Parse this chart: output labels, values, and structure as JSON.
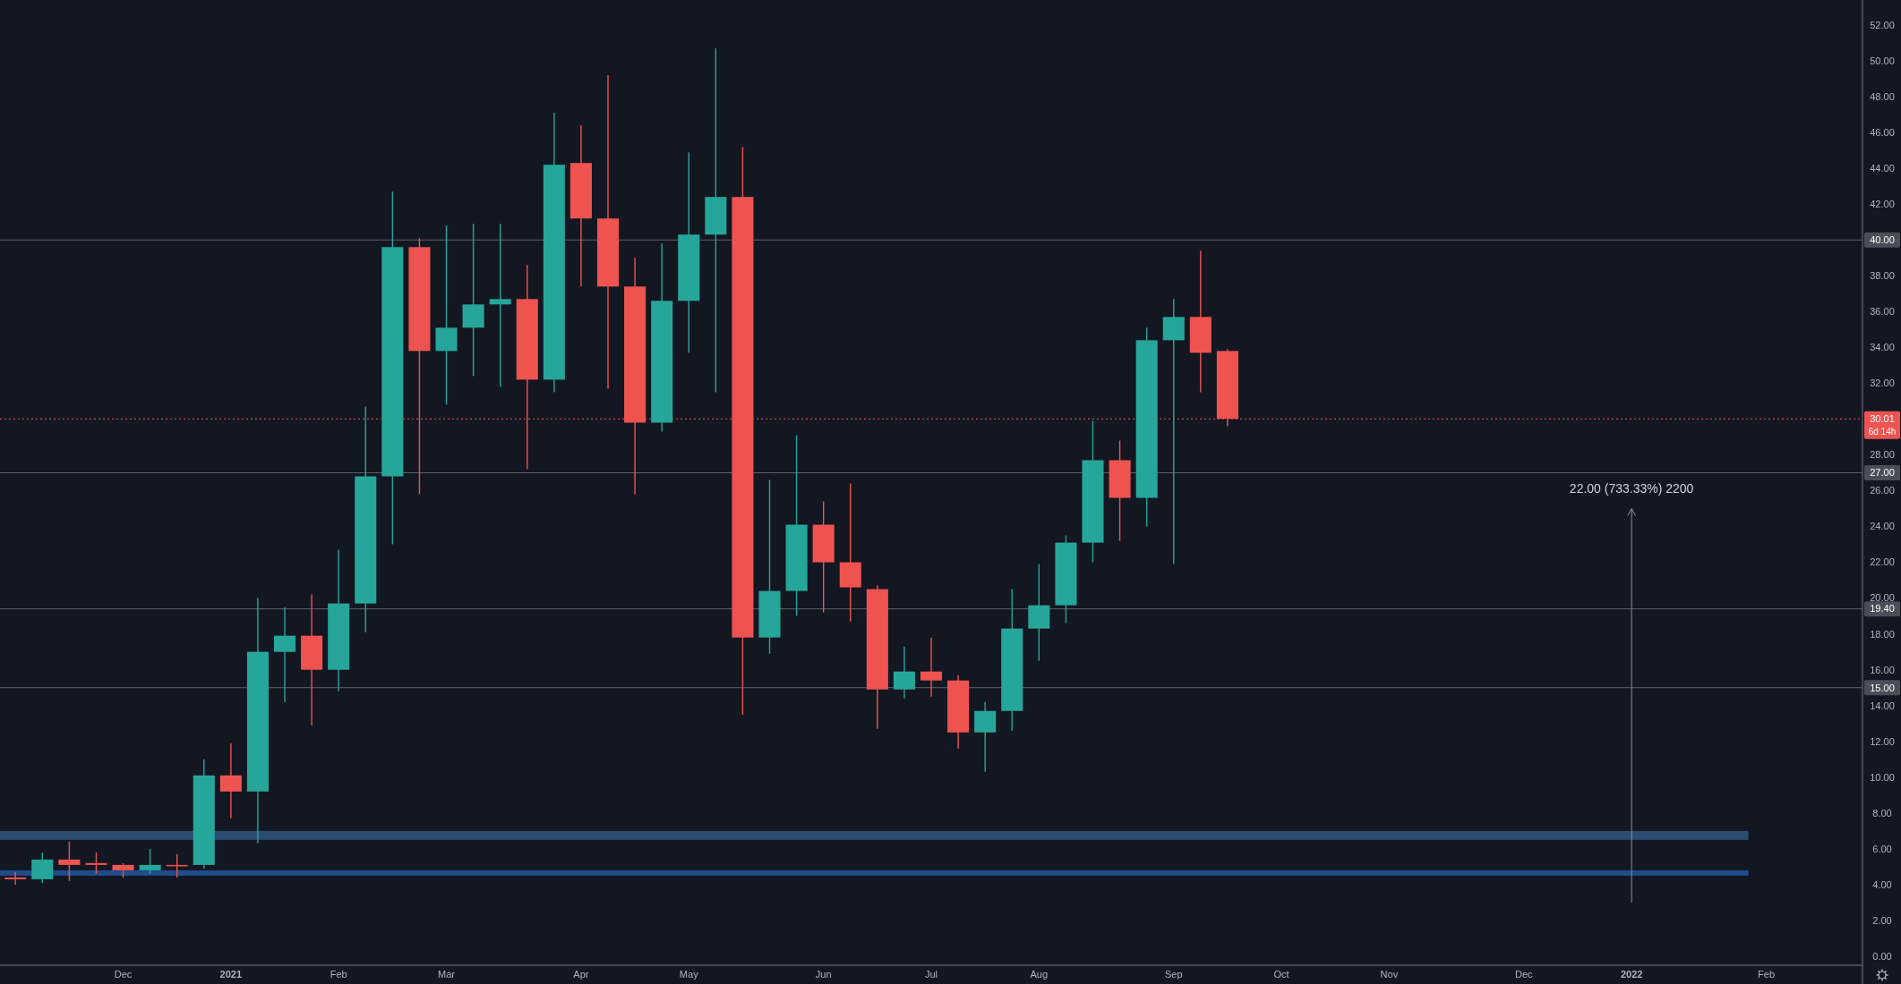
{
  "chart_data": {
    "type": "candlestick",
    "x": [
      "2020-11-09",
      "2020-11-16",
      "2020-11-23",
      "2020-11-30",
      "2020-12-07",
      "2020-12-14",
      "2020-12-21",
      "2020-12-28",
      "2021-01-04",
      "2021-01-11",
      "2021-01-18",
      "2021-01-25",
      "2021-02-01",
      "2021-02-08",
      "2021-02-15",
      "2021-02-22",
      "2021-03-01",
      "2021-03-08",
      "2021-03-15",
      "2021-03-22",
      "2021-03-29",
      "2021-04-05",
      "2021-04-12",
      "2021-04-19",
      "2021-04-26",
      "2021-05-03",
      "2021-05-10",
      "2021-05-17",
      "2021-05-24",
      "2021-05-31",
      "2021-06-07",
      "2021-06-14",
      "2021-06-21",
      "2021-06-28",
      "2021-07-05",
      "2021-07-12",
      "2021-07-19",
      "2021-07-26",
      "2021-08-02",
      "2021-08-09",
      "2021-08-16",
      "2021-08-23",
      "2021-08-30",
      "2021-09-06",
      "2021-09-13",
      "2021-09-20"
    ],
    "ohlc": [
      [
        4.4,
        4.7,
        4.0,
        4.3
      ],
      [
        4.3,
        5.8,
        4.1,
        5.4
      ],
      [
        5.4,
        6.4,
        4.2,
        5.1
      ],
      [
        5.2,
        5.8,
        4.6,
        5.1
      ],
      [
        5.1,
        5.2,
        4.4,
        4.8
      ],
      [
        4.8,
        6.0,
        4.6,
        5.1
      ],
      [
        5.1,
        5.7,
        4.4,
        5.1
      ],
      [
        5.1,
        11.0,
        4.9,
        10.1
      ],
      [
        10.1,
        11.9,
        7.7,
        9.2
      ],
      [
        9.2,
        20.0,
        6.3,
        17.0
      ],
      [
        17.0,
        19.5,
        14.2,
        17.9
      ],
      [
        17.9,
        20.2,
        12.9,
        16.0
      ],
      [
        16.0,
        22.7,
        14.8,
        19.7
      ],
      [
        19.7,
        30.7,
        18.1,
        26.8
      ],
      [
        26.8,
        42.7,
        23.0,
        39.6
      ],
      [
        39.6,
        40.1,
        25.8,
        33.8
      ],
      [
        33.8,
        40.8,
        30.8,
        35.1
      ],
      [
        35.1,
        40.9,
        32.4,
        36.4
      ],
      [
        36.4,
        40.9,
        31.8,
        36.7
      ],
      [
        36.7,
        38.6,
        27.2,
        32.2
      ],
      [
        32.2,
        47.1,
        31.5,
        44.2
      ],
      [
        44.3,
        46.4,
        37.4,
        41.2
      ],
      [
        41.2,
        49.2,
        31.7,
        37.4
      ],
      [
        37.4,
        39.0,
        25.8,
        29.8
      ],
      [
        29.8,
        39.8,
        29.3,
        36.6
      ],
      [
        36.6,
        44.9,
        33.7,
        40.3
      ],
      [
        40.3,
        50.7,
        31.5,
        42.4
      ],
      [
        42.4,
        45.2,
        13.5,
        17.8
      ],
      [
        17.8,
        26.6,
        16.9,
        20.4
      ],
      [
        20.4,
        29.1,
        19.0,
        24.1
      ],
      [
        24.1,
        25.4,
        19.2,
        22.0
      ],
      [
        22.0,
        26.4,
        18.7,
        20.6
      ],
      [
        20.5,
        20.7,
        12.7,
        14.9
      ],
      [
        14.9,
        17.3,
        14.4,
        15.9
      ],
      [
        15.9,
        17.8,
        14.5,
        15.4
      ],
      [
        15.4,
        15.7,
        11.6,
        12.5
      ],
      [
        12.5,
        14.2,
        10.3,
        13.7
      ],
      [
        13.7,
        20.5,
        12.6,
        18.3
      ],
      [
        18.3,
        21.9,
        16.5,
        19.6
      ],
      [
        19.6,
        23.5,
        18.6,
        23.1
      ],
      [
        23.1,
        29.9,
        22.0,
        27.7
      ],
      [
        27.7,
        28.8,
        23.2,
        25.6
      ],
      [
        25.6,
        35.1,
        24.0,
        34.4
      ],
      [
        34.4,
        36.7,
        21.9,
        35.7
      ],
      [
        35.7,
        39.4,
        31.5,
        33.7
      ],
      [
        33.8,
        33.9,
        29.6,
        30.01
      ]
    ],
    "colors": [
      "#ef5350",
      "#26a69a",
      "#ef5350",
      "#ef5350",
      "#ef5350",
      "#26a69a",
      "#ef5350",
      "#26a69a",
      "#ef5350",
      "#26a69a",
      "#26a69a",
      "#ef5350",
      "#26a69a",
      "#26a69a",
      "#26a69a",
      "#ef5350",
      "#26a69a",
      "#26a69a",
      "#26a69a",
      "#ef5350",
      "#26a69a",
      "#ef5350",
      "#ef5350",
      "#ef5350",
      "#26a69a",
      "#26a69a",
      "#26a69a",
      "#ef5350",
      "#26a69a",
      "#26a69a",
      "#ef5350",
      "#ef5350",
      "#ef5350",
      "#26a69a",
      "#ef5350",
      "#ef5350",
      "#26a69a",
      "#26a69a",
      "#26a69a",
      "#26a69a",
      "#26a69a",
      "#ef5350",
      "#26a69a",
      "#26a69a",
      "#ef5350",
      "#ef5350"
    ],
    "series": [
      {
        "type": "line",
        "x": [
          "2022-01-03",
          "2022-01-03"
        ],
        "values": [
          3.0,
          25.0
        ],
        "color": "#8a8f99"
      }
    ],
    "xlim": [
      "2020-11-05",
      "2022-03-04"
    ],
    "xticks": [
      {
        "value": "2020-12-07",
        "label": "Dec"
      },
      {
        "value": "2021-01-04",
        "label": "2021"
      },
      {
        "value": "2021-02-01",
        "label": "Feb"
      },
      {
        "value": "2021-03-01",
        "label": "Mar"
      },
      {
        "value": "2021-04-05",
        "label": "Apr"
      },
      {
        "value": "2021-05-03",
        "label": "May"
      },
      {
        "value": "2021-06-07",
        "label": "Jun"
      },
      {
        "value": "2021-07-05",
        "label": "Jul"
      },
      {
        "value": "2021-08-02",
        "label": "Aug"
      },
      {
        "value": "2021-09-06",
        "label": "Sep"
      },
      {
        "value": "2021-10-04",
        "label": "Oct"
      },
      {
        "value": "2021-11-01",
        "label": "Nov"
      },
      {
        "value": "2021-12-06",
        "label": "Dec"
      },
      {
        "value": "2022-01-03",
        "label": "2022"
      },
      {
        "value": "2022-02-07",
        "label": "Feb"
      }
    ],
    "ylim": [
      -0.5,
      53.4
    ],
    "yticks": [
      {
        "value": 0,
        "label": "0.00"
      },
      {
        "value": 2,
        "label": "2.00"
      },
      {
        "value": 4,
        "label": "4.00"
      },
      {
        "value": 6,
        "label": "6.00"
      },
      {
        "value": 8,
        "label": "8.00"
      },
      {
        "value": 10,
        "label": "10.00"
      },
      {
        "value": 12,
        "label": "12.00"
      },
      {
        "value": 14,
        "label": "14.00"
      },
      {
        "value": 16,
        "label": "16.00"
      },
      {
        "value": 18,
        "label": "18.00"
      },
      {
        "value": 20,
        "label": "20.00"
      },
      {
        "value": 22,
        "label": "22.00"
      },
      {
        "value": 24,
        "label": "24.00"
      },
      {
        "value": 26,
        "label": "26.00"
      },
      {
        "value": 28,
        "label": "28.00"
      },
      {
        "value": 32,
        "label": "32.00"
      },
      {
        "value": 34,
        "label": "34.00"
      },
      {
        "value": 36,
        "label": "36.00"
      },
      {
        "value": 38,
        "label": "38.00"
      },
      {
        "value": 42,
        "label": "42.00"
      },
      {
        "value": 44,
        "label": "44.00"
      },
      {
        "value": 46,
        "label": "46.00"
      },
      {
        "value": 48,
        "label": "48.00"
      },
      {
        "value": 50,
        "label": "50.00"
      },
      {
        "value": 52,
        "label": "52.00"
      }
    ],
    "ref_lines": [
      {
        "axis": "y",
        "value": 40,
        "label": "40.00",
        "color": "#5d606b"
      },
      {
        "axis": "y",
        "value": 27,
        "label": "27.00",
        "color": "#5d606b"
      },
      {
        "axis": "y",
        "value": 19.4,
        "label": "19.40",
        "color": "#5d606b"
      },
      {
        "axis": "y",
        "value": 15,
        "label": "15.00",
        "color": "#5d606b"
      },
      {
        "axis": "y",
        "value": 30.01,
        "label": "30.01",
        "color": "#ef5350",
        "line_style": "dotted"
      }
    ],
    "bands": [
      {
        "axis": "y",
        "from": 6.5,
        "to": 7.0,
        "color": "#2a4c72"
      },
      {
        "axis": "y",
        "from": 4.5,
        "to": 4.8,
        "color": "#1f4c8a"
      }
    ],
    "annotations": [
      "22.00 (733.33%) 2200",
      "6d 14h"
    ],
    "grid": false
  }
}
